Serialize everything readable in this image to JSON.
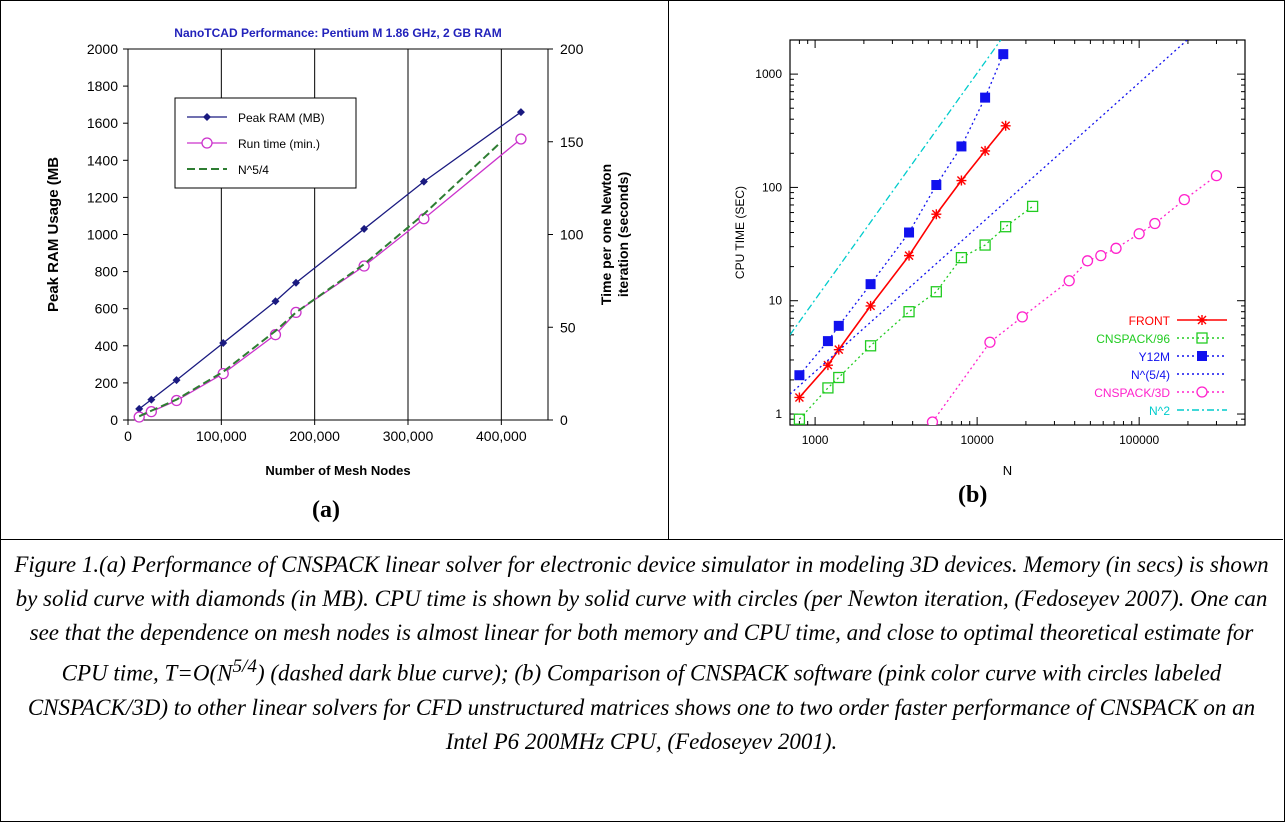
{
  "chart_data": [
    {
      "id": "a",
      "type": "line",
      "title": "NanoTCAD Performance: Pentium M 1.86 GHz, 2 GB RAM",
      "xlabel": "Number of Mesh Nodes",
      "ylabel": "Peak RAM Usage  (MB",
      "y2label": [
        "Time per one Newton",
        "iteration (seconds)"
      ],
      "xlim": [
        0,
        450000
      ],
      "ylim": [
        0,
        2000
      ],
      "y2lim": [
        0,
        200
      ],
      "x_ticks": [
        0,
        100000,
        200000,
        300000,
        400000
      ],
      "x_tick_labels": [
        "0",
        "100,000",
        "200,000",
        "300,000",
        "400,000"
      ],
      "y_ticks": [
        0,
        200,
        400,
        600,
        800,
        1000,
        1200,
        1400,
        1600,
        1800,
        2000
      ],
      "y2_ticks": [
        0,
        50,
        100,
        150,
        200
      ],
      "grid": "vertical lines at x ticks",
      "legend_placement": "top-left",
      "series": [
        {
          "name": "Peak RAM (MB)",
          "axis": "left",
          "color": "#1a1a80",
          "marker": "diamond",
          "style": "solid",
          "x": [
            12000,
            25000,
            52000,
            102000,
            158000,
            180000,
            253000,
            317000,
            421000
          ],
          "y": [
            60,
            110,
            215,
            415,
            640,
            740,
            1030,
            1285,
            1660
          ]
        },
        {
          "name": "Run time (min.)",
          "axis": "right",
          "color": "#cc33cc",
          "marker": "circle",
          "style": "solid",
          "x": [
            12000,
            25000,
            52000,
            102000,
            158000,
            180000,
            253000,
            317000,
            421000
          ],
          "y": [
            1.6,
            4.5,
            10.5,
            25,
            46,
            58,
            83,
            108.5,
            151.5
          ]
        },
        {
          "name": "N^5/4",
          "axis": "right",
          "color": "#2e7d32",
          "marker": "none",
          "style": "dashed",
          "x": [
            12000,
            25000,
            52000,
            102000,
            158000,
            180000,
            253000,
            317000,
            400000
          ],
          "y": [
            2,
            5,
            11,
            26,
            48,
            58,
            84,
            111,
            150
          ]
        }
      ],
      "panel_label": "(a)"
    },
    {
      "id": "b",
      "type": "line",
      "title": "",
      "xlabel": "N",
      "ylabel": "CPU TIME (SEC)",
      "xscale": "log",
      "yscale": "log",
      "xlim": [
        700,
        450000
      ],
      "ylim": [
        0.8,
        2000
      ],
      "x_tick_labels": [
        "1000",
        "10000",
        "100000"
      ],
      "y_tick_labels": [
        "1",
        "10",
        "100",
        "1000"
      ],
      "grid": "none",
      "legend_placement": "bottom-right",
      "series": [
        {
          "name": "FRONT",
          "color": "#ff0000",
          "marker": "asterisk",
          "style": "solid",
          "x": [
            800,
            1200,
            1400,
            2200,
            3800,
            5600,
            8000,
            11200,
            15000
          ],
          "y": [
            1.4,
            2.7,
            3.7,
            9,
            25,
            58,
            115,
            210,
            350
          ]
        },
        {
          "name": "CNSPACK/96",
          "color": "#22cc22",
          "marker": "open-square",
          "style": "dotted",
          "x": [
            800,
            1200,
            1400,
            2200,
            3800,
            5600,
            8000,
            11200,
            15000,
            22000
          ],
          "y": [
            0.9,
            1.7,
            2.1,
            4,
            8,
            12,
            24,
            31,
            45,
            68
          ]
        },
        {
          "name": "Y12M",
          "color": "#1111ee",
          "marker": "filled-square",
          "style": "dotted",
          "x": [
            800,
            1200,
            1400,
            2200,
            3800,
            5600,
            8000,
            11200,
            14500
          ],
          "y": [
            2.2,
            4.4,
            6,
            14,
            40,
            105,
            230,
            620,
            1500
          ]
        },
        {
          "name": "N^(5/4)",
          "color": "#1111ee",
          "marker": "none",
          "style": "dotted",
          "x": [
            700,
            450000
          ],
          "y": [
            1.5,
            5700
          ]
        },
        {
          "name": "CNSPACK/3D",
          "color": "#ff22cc",
          "marker": "open-circle",
          "style": "dotted",
          "x": [
            5300,
            12000,
            19000,
            37000,
            48000,
            58000,
            72000,
            100000,
            125000,
            190000,
            300000
          ],
          "y": [
            0.85,
            4.3,
            7.2,
            15,
            22.5,
            25,
            29,
            39,
            48,
            78,
            127
          ]
        },
        {
          "name": "N^2",
          "color": "#00cccc",
          "marker": "none",
          "style": "dashdot",
          "x": [
            700,
            14000
          ],
          "y": [
            5,
            2000
          ]
        }
      ],
      "panel_label": "(b)"
    }
  ],
  "caption": {
    "pre": "Figure 1.(a) Performance of CNSPACK linear solver for electronic device simulator in modeling 3D devices. Memory (in secs) is shown by solid curve with diamonds (in MB). CPU time is shown by solid curve with circles (per Newton iteration, (Fedoseyev 2007). One can see that the dependence on mesh nodes is almost linear for both memory and CPU time, and close to optimal theoretical estimate for CPU time, T=O(N",
    "sup": "5/4",
    "post": ") (dashed dark blue curve); (b) Comparison of CNSPACK software (pink color curve with circles labeled CNSPACK/3D) to other linear solvers for CFD unstructured matrices shows one to two order faster performance of CNSPACK on an Intel P6 200MHz CPU, (Fedoseyev 2001)."
  }
}
